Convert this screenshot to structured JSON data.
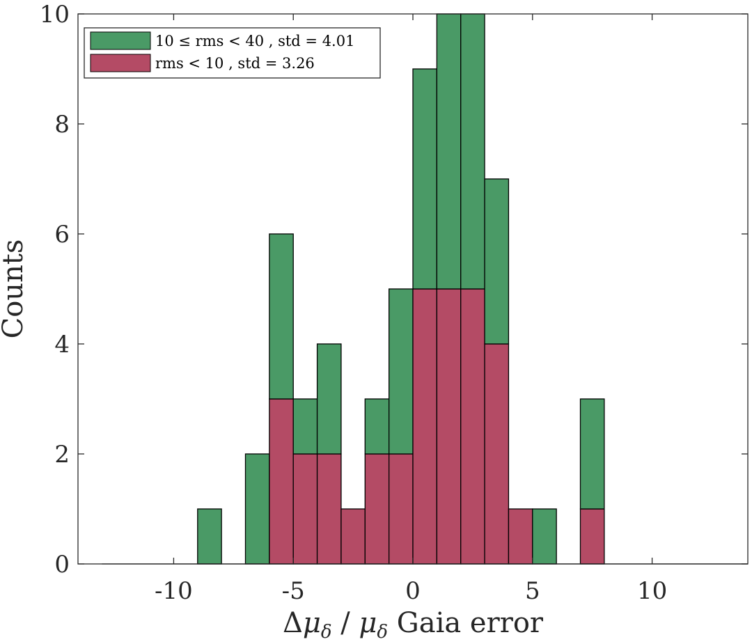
{
  "chart_data": {
    "type": "bar",
    "stacked": true,
    "bin_width": 1,
    "bin_starts": [
      -9,
      -7,
      -6,
      -5,
      -4,
      -3,
      -2,
      -1,
      0,
      1,
      2,
      3,
      4,
      5,
      7
    ],
    "series": [
      {
        "name": "rms < 10 , std = 3.26",
        "color": "#B44B65",
        "values": [
          0,
          0,
          3,
          2,
          2,
          1,
          2,
          2,
          5,
          5,
          5,
          4,
          1,
          0,
          1
        ]
      },
      {
        "name": "10 ≤ rms < 40 , std = 4.01",
        "color": "#4A9A66",
        "values": [
          1,
          2,
          3,
          1,
          2,
          0,
          1,
          3,
          4,
          5,
          5,
          3,
          0,
          1,
          2
        ]
      }
    ],
    "xlim": [
      -14,
      14
    ],
    "ylim": [
      0,
      10
    ],
    "baseline_range": [
      -13,
      14
    ],
    "xticks": [
      "-10",
      "-5",
      "0",
      "5",
      "10"
    ],
    "xtick_values": [
      -10,
      -5,
      0,
      5,
      10
    ],
    "yticks": [
      "0",
      "2",
      "4",
      "6",
      "8",
      "10"
    ],
    "ytick_values": [
      0,
      2,
      4,
      6,
      8,
      10
    ],
    "xlabel": {
      "prefix": "Δ",
      "mu": "μ",
      "sub": "δ",
      "slash": " / ",
      "suffix": " Gaia error"
    },
    "ylabel": "Counts",
    "legend": {
      "placement": "top-left",
      "entries": [
        {
          "label": "10 ≤ rms < 40 , std = 4.01",
          "color": "#4A9A66"
        },
        {
          "label": "rms < 10 , std = 3.26",
          "color": "#B44B65"
        }
      ]
    },
    "grid": false
  }
}
